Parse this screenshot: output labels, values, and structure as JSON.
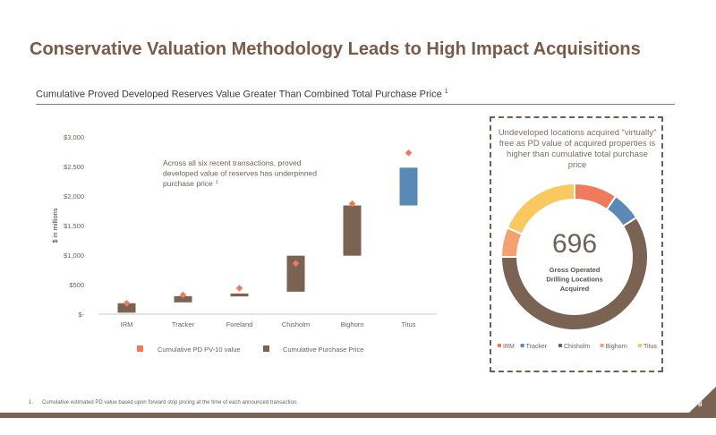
{
  "slide": {
    "title": "Conservative Valuation Methodology Leads to High Impact Acquisitions",
    "subtitle": "Cumulative Proved Developed Reserves Value Greater Than Combined Total Purchase Price",
    "subtitle_sup": "1",
    "footnote_number": "1.",
    "footnote_text": "Cumulative estimated PD value based upon forward strip pricing at the time of each announced transaction.",
    "page_number": "8"
  },
  "colors": {
    "title": "#7a5a48",
    "purchase_bar": "#7a6352",
    "titus_bar": "#5b89b7",
    "pd_marker": "#f07a5c",
    "border": "#7a5c4a"
  },
  "chart_data": [
    {
      "type": "bar",
      "subtype": "floating-bar-with-markers",
      "ylabel": "$ in millions",
      "ylim": [
        0,
        3000
      ],
      "yticks": [
        0,
        500,
        1000,
        1500,
        2000,
        2500,
        3000
      ],
      "ytick_labels": [
        "$-",
        "$500",
        "$1,000",
        "$1,500",
        "$2,000",
        "$2,500",
        "$3,000"
      ],
      "grid": false,
      "legend_position": "bottom",
      "categories": [
        "IRM",
        "Tracker",
        "Foreland",
        "Chisholm",
        "Bighorn",
        "Titus"
      ],
      "series": [
        {
          "name": "Cumulative Purchase Price",
          "kind": "floating-bar",
          "low": [
            25,
            200,
            300,
            380,
            990,
            1840
          ],
          "high": [
            185,
            305,
            350,
            990,
            1840,
            2480
          ],
          "colors": [
            "#7a6352",
            "#7a6352",
            "#7a6352",
            "#7a6352",
            "#7a6352",
            "#5b89b7"
          ]
        },
        {
          "name": "Cumulative PD PV-10 value",
          "kind": "marker",
          "values": [
            185,
            325,
            440,
            860,
            1870,
            2730
          ]
        }
      ],
      "annotation": "Across all six recent transactions, proved developed value of reserves has underpinned purchase price",
      "annotation_sup": "1"
    },
    {
      "type": "pie",
      "subtype": "donut",
      "center_value": "696",
      "center_label": "Gross Operated Drilling Locations Acquired",
      "panel_text": "Undeveloped locations acquired “virtually” free as PD value of acquired properties is higher than cumulative total purchase price",
      "legend_position": "bottom",
      "slices": [
        {
          "name": "IRM",
          "value": 9.5,
          "color": "#f07a5c"
        },
        {
          "name": "Tracker",
          "value": 6.5,
          "color": "#5b89b7"
        },
        {
          "name": "Chisholm",
          "value": 59,
          "color": "#7a6352"
        },
        {
          "name": "Bighorn",
          "value": 6.5,
          "color": "#f4a070"
        },
        {
          "name": "Titus",
          "value": 18.5,
          "color": "#f9c95f"
        }
      ]
    }
  ]
}
